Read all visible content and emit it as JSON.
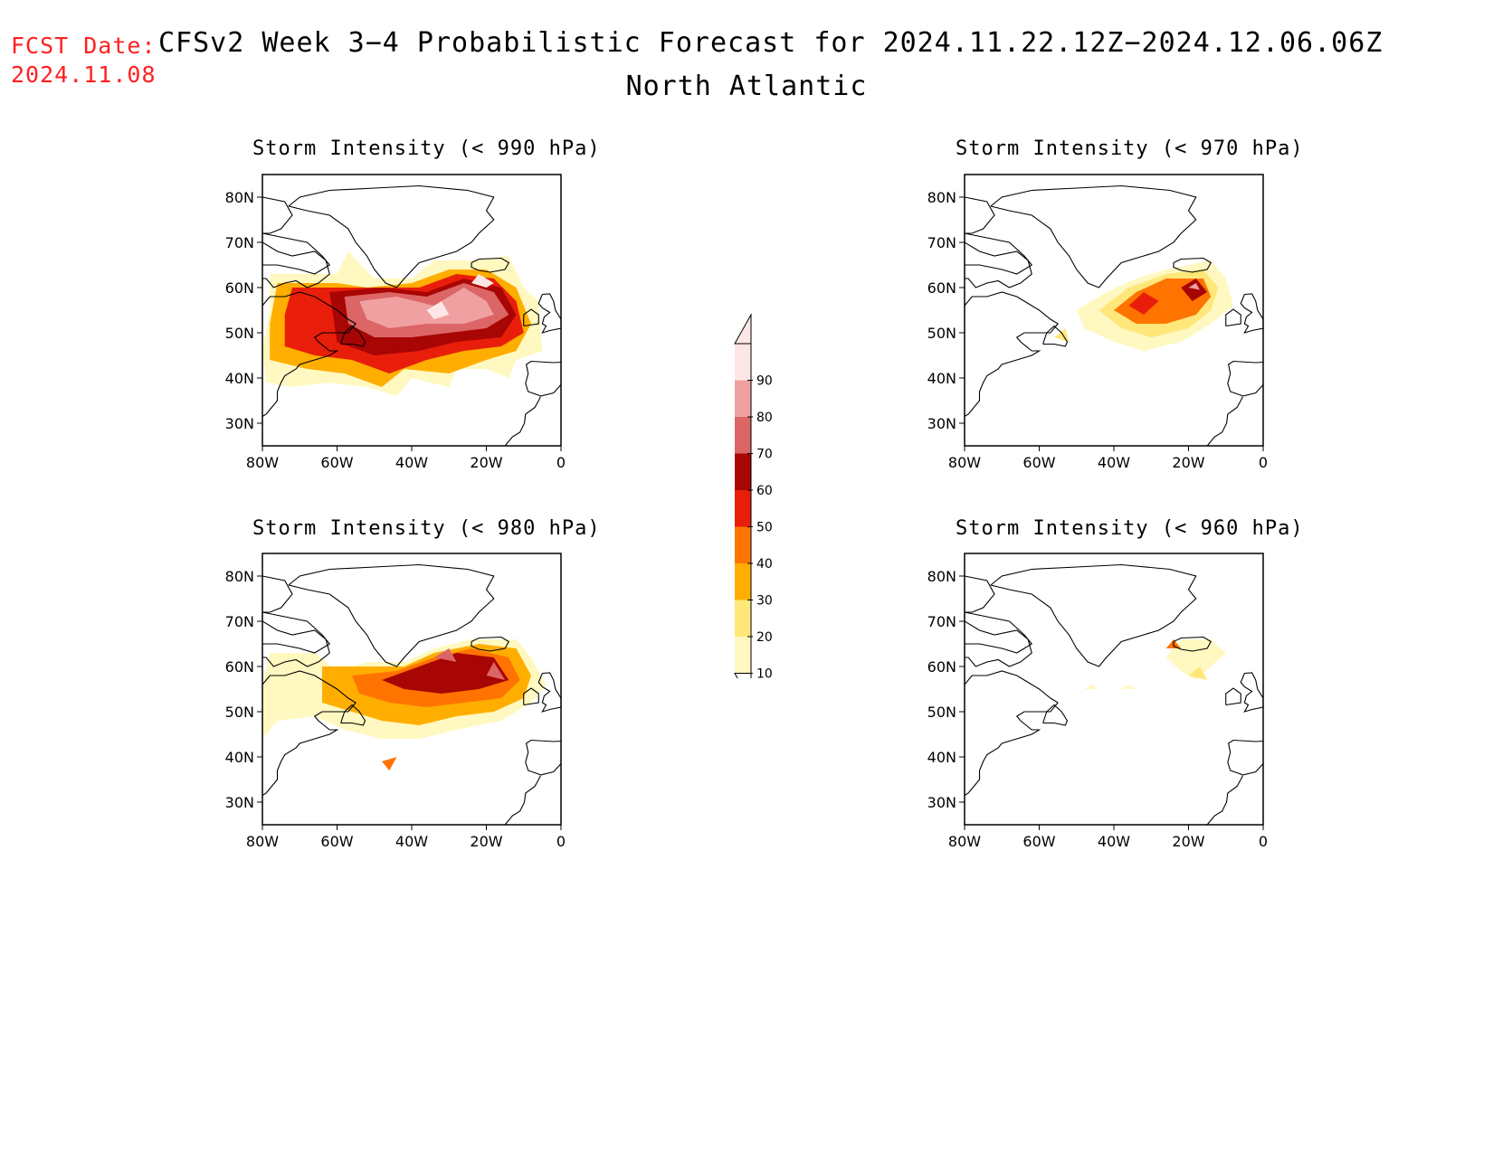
{
  "header": {
    "fcst_label": "FCST Date:",
    "fcst_date": "2024.11.08",
    "title": "CFSv2 Week 3−4 Probabilistic Forecast for 2024.11.22.12Z−2024.12.06.06Z",
    "subtitle": "North Atlantic"
  },
  "axes": {
    "lat_ticks": [
      "80N",
      "70N",
      "60N",
      "50N",
      "40N",
      "30N"
    ],
    "lon_ticks": [
      "80W",
      "60W",
      "40W",
      "20W",
      "0"
    ]
  },
  "colorbar": {
    "levels": [
      "10",
      "20",
      "30",
      "40",
      "50",
      "60",
      "70",
      "80",
      "90"
    ],
    "colors": [
      "#fff8c0",
      "#ffe77a",
      "#ffae00",
      "#ff7400",
      "#e81e0a",
      "#a80505",
      "#dc6565",
      "#f0a0a0",
      "#ffe6e6"
    ]
  },
  "panels": [
    {
      "id": "p990",
      "title": "Storm Intensity (< 990 hPa)"
    },
    {
      "id": "p970",
      "title": "Storm Intensity (< 970 hPa)"
    },
    {
      "id": "p980",
      "title": "Storm Intensity (< 980 hPa)"
    },
    {
      "id": "p960",
      "title": "Storm Intensity (< 960 hPa)"
    }
  ]
}
